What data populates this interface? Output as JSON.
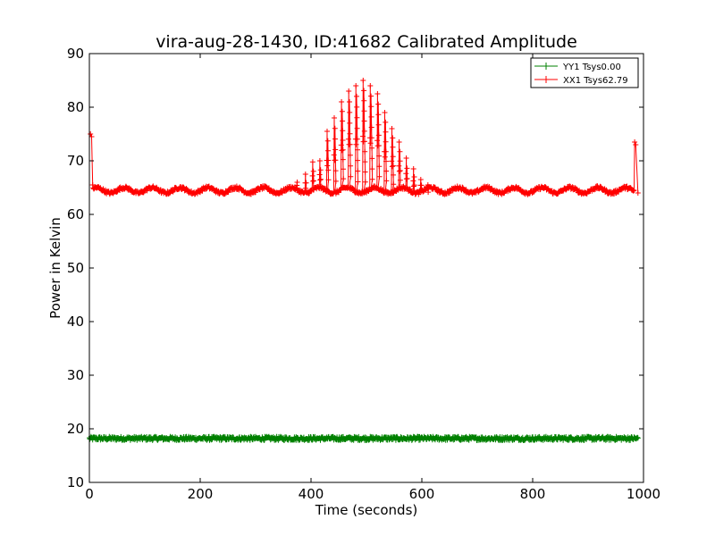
{
  "chart_data": {
    "type": "line",
    "title": "vira-aug-28-1430, ID:41682 Calibrated Amplitude",
    "xlabel": "Time (seconds)",
    "ylabel": "Power in Kelvin",
    "xlim": [
      0,
      1000
    ],
    "ylim": [
      10,
      90
    ],
    "x_ticks": [
      0,
      200,
      400,
      600,
      800,
      1000
    ],
    "y_ticks": [
      10,
      20,
      30,
      40,
      50,
      60,
      70,
      80,
      90
    ],
    "x_tick_labels": [
      "0",
      "200",
      "400",
      "600",
      "800",
      "1000"
    ],
    "y_tick_labels": [
      "10",
      "20",
      "30",
      "40",
      "50",
      "60",
      "70",
      "80",
      "90"
    ],
    "grid": false,
    "legend_position": "top-right",
    "marker": "+",
    "series": [
      {
        "name": "YY1 Tsys0.00",
        "color": "#008000",
        "x_range": [
          0,
          990
        ],
        "baseline": 18.2,
        "noise": 0.35,
        "description_values": "flat noisy band near 18 K across entire scan"
      },
      {
        "name": "XX1 Tsys62.79",
        "color": "#ff0000",
        "x_range": [
          0,
          990
        ],
        "baseline": 64.5,
        "ripple": 0.5,
        "start_spike": [
          [
            2,
            75.0
          ],
          [
            4,
            74.5
          ],
          [
            6,
            65.5
          ]
        ],
        "end_spike": [
          [
            984,
            73.5
          ],
          [
            986,
            73.0
          ],
          [
            990,
            64.0
          ]
        ],
        "peak_times": [
          375,
          390,
          403,
          416,
          429,
          442,
          455,
          468,
          481,
          494,
          507,
          520,
          533,
          546,
          559,
          572,
          585,
          598,
          611
        ],
        "peak_values": [
          66.0,
          67.5,
          69.8,
          70.0,
          75.5,
          78.0,
          81.0,
          83.0,
          84.0,
          85.0,
          84.0,
          82.5,
          79.0,
          76.0,
          73.5,
          70.5,
          68.5,
          66.5,
          65.5
        ]
      }
    ]
  }
}
